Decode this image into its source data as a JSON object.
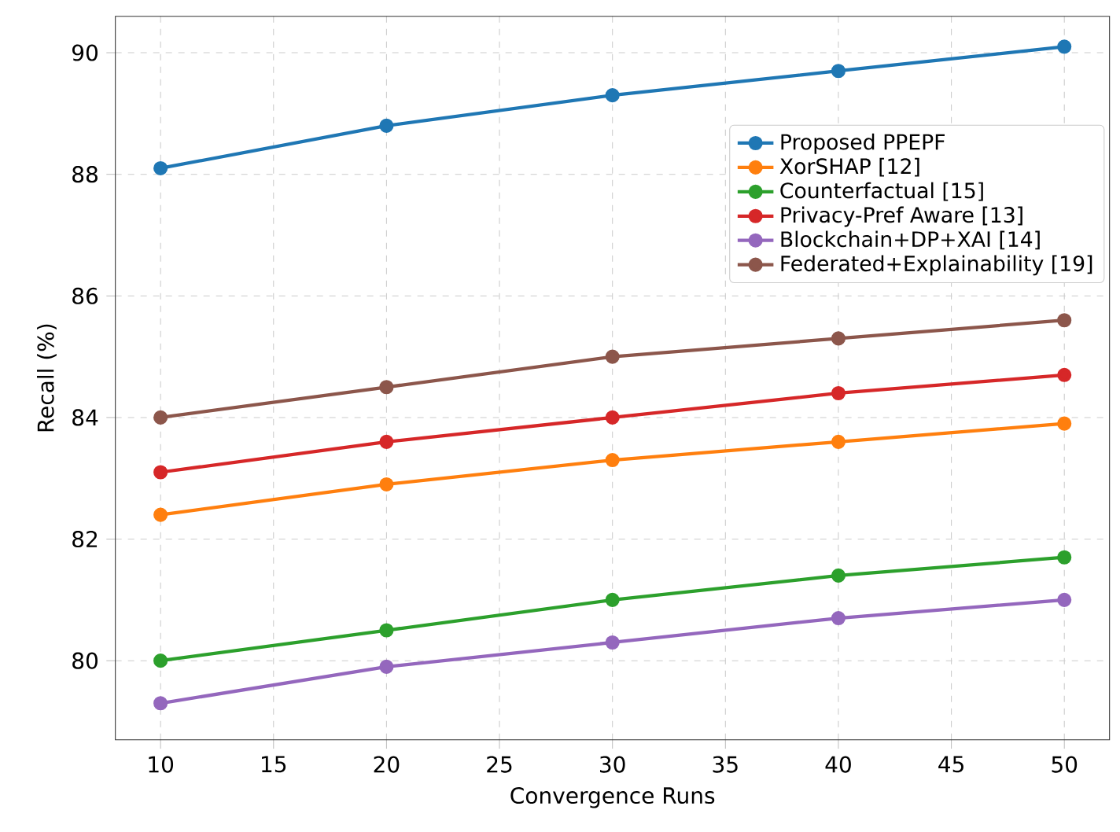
{
  "chart_data": {
    "type": "line",
    "xlabel": "Convergence Runs",
    "ylabel": "Recall (%)",
    "x": [
      10,
      20,
      30,
      40,
      50
    ],
    "series": [
      {
        "name": "Proposed PPEPF",
        "color": "#1f77b4",
        "values": [
          88.1,
          88.8,
          89.3,
          89.7,
          90.1
        ]
      },
      {
        "name": "XorSHAP [12]",
        "color": "#ff7f0e",
        "values": [
          82.4,
          82.9,
          83.3,
          83.6,
          83.9
        ]
      },
      {
        "name": "Counterfactual [15]",
        "color": "#2ca02c",
        "values": [
          80.0,
          80.5,
          81.0,
          81.4,
          81.7
        ]
      },
      {
        "name": "Privacy-Pref Aware [13]",
        "color": "#d62728",
        "values": [
          83.1,
          83.6,
          84.0,
          84.4,
          84.7
        ]
      },
      {
        "name": "Blockchain+DP+XAI [14]",
        "color": "#9467bd",
        "values": [
          79.3,
          79.9,
          80.3,
          80.7,
          81.0
        ]
      },
      {
        "name": "Federated+Explainability [19]",
        "color": "#8c564b",
        "values": [
          84.0,
          84.5,
          85.0,
          85.3,
          85.6
        ]
      }
    ],
    "xlim": [
      8,
      52
    ],
    "ylim": [
      78.7,
      90.6
    ],
    "xticks": [
      10,
      15,
      20,
      25,
      30,
      35,
      40,
      45,
      50
    ],
    "yticks": [
      80,
      82,
      84,
      86,
      88,
      90
    ],
    "grid": true,
    "legend": "top right",
    "marker": "circle",
    "line_style": "solid"
  }
}
